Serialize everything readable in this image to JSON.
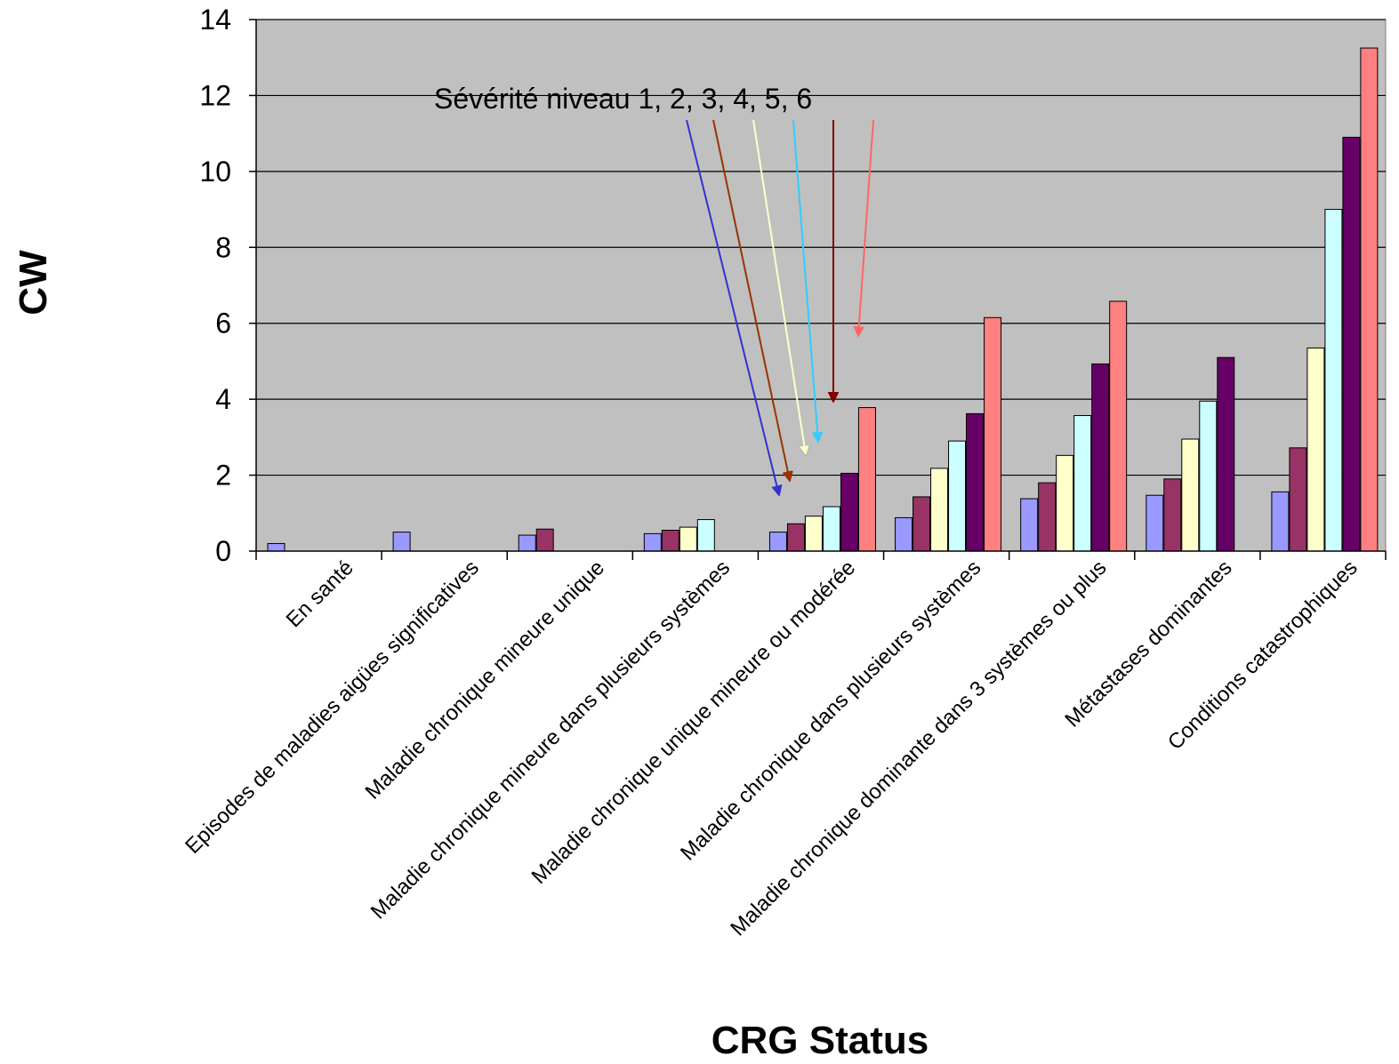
{
  "chart_data": {
    "type": "bar",
    "xlabel": "CRG Status",
    "ylabel": "CW",
    "ylim": [
      0,
      14
    ],
    "yticks": [
      0,
      2,
      4,
      6,
      8,
      10,
      12,
      14
    ],
    "grid": true,
    "plot_background": "#c0c0c0",
    "categories": [
      "En santé",
      "Episodes de maladies aigües significatives",
      "Maladie chronique mineure unique",
      "Maladie chronique mineure dans plusieurs systèmes",
      "Maladie chronique unique mineure ou modérée",
      "Maladie chronique dans plusieurs systèmes",
      "Maladie chronique dominante dans 3 systèmes ou plus",
      "Métastases dominantes",
      "Conditions catastrophiques"
    ],
    "series": [
      {
        "color": "#9999ff",
        "values": [
          0.2,
          0.5,
          0.42,
          0.46,
          0.5,
          0.88,
          1.38,
          1.47,
          1.56
        ]
      },
      {
        "color": "#993366",
        "values": [
          null,
          null,
          0.58,
          0.55,
          0.72,
          1.43,
          1.8,
          1.9,
          2.72
        ]
      },
      {
        "color": "#ffffcc",
        "values": [
          null,
          null,
          null,
          0.63,
          0.92,
          2.18,
          2.52,
          2.95,
          5.35
        ]
      },
      {
        "color": "#ccffff",
        "values": [
          null,
          null,
          null,
          0.83,
          1.17,
          2.9,
          3.57,
          3.95,
          9.0
        ]
      },
      {
        "color": "#660066",
        "values": [
          null,
          null,
          null,
          null,
          2.05,
          3.62,
          4.93,
          5.1,
          10.9
        ]
      },
      {
        "color": "#ff8080",
        "values": [
          null,
          null,
          null,
          null,
          3.78,
          6.15,
          6.58,
          null,
          13.25
        ]
      }
    ],
    "annotation": {
      "text": "Sévérité niveau 1, 2, 3, 4, 5, 6",
      "arrow_colors": [
        "#3333cc",
        "#993300",
        "#ffffcc",
        "#33ccff",
        "#800000",
        "#ff6666"
      ]
    }
  }
}
